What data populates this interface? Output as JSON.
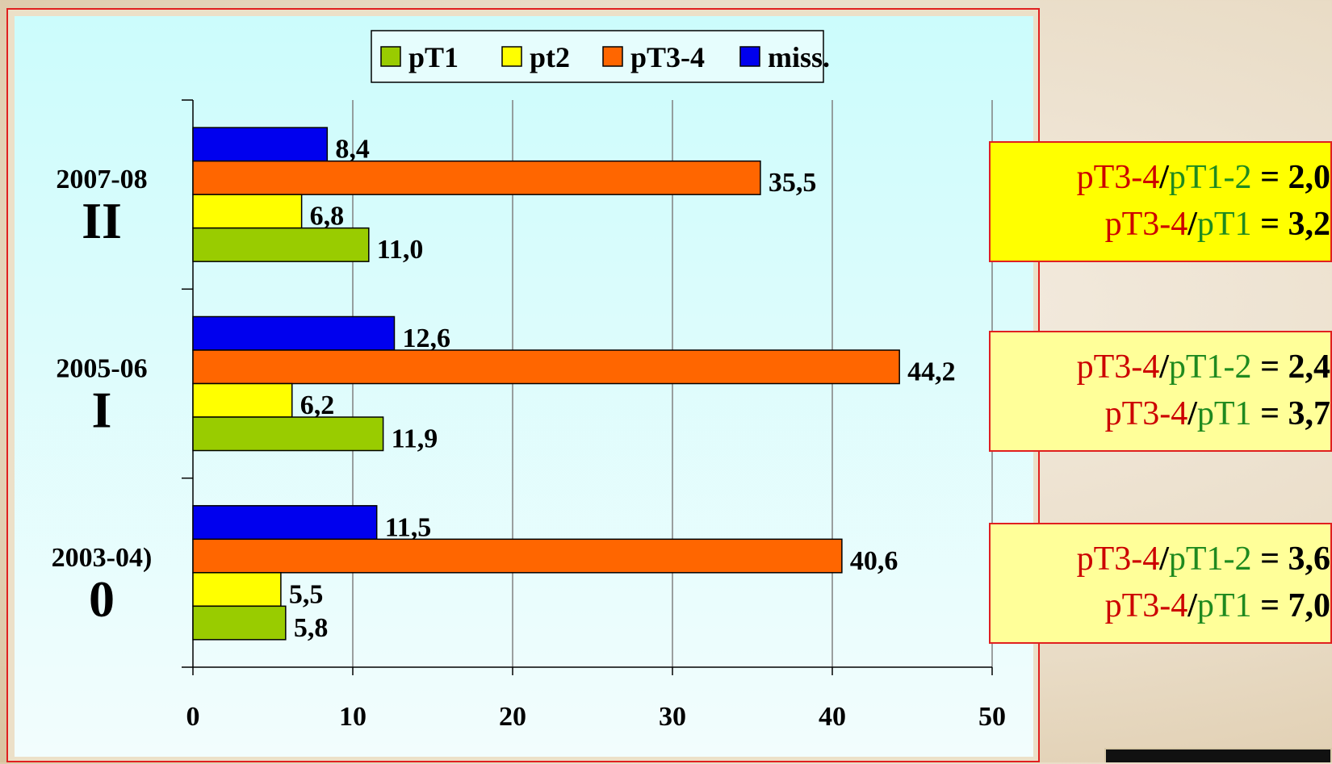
{
  "chart_data": {
    "type": "bar",
    "orientation": "horizontal",
    "groups": [
      {
        "label": "2007-08",
        "roman": "II"
      },
      {
        "label": "2005-06",
        "roman": "I"
      },
      {
        "label": "2003-04)",
        "roman": "0"
      }
    ],
    "series": [
      {
        "name": "pT1",
        "color": "#99cc00",
        "values": [
          11.0,
          11.9,
          5.8
        ],
        "value_labels": [
          "11,0",
          "11,9",
          "5,8"
        ]
      },
      {
        "name": "pt2",
        "color": "#ffff00",
        "values": [
          6.8,
          6.2,
          5.5
        ],
        "value_labels": [
          "6,8",
          "6,2",
          "5,5"
        ]
      },
      {
        "name": "pT3-4",
        "color": "#ff6600",
        "values": [
          35.5,
          44.2,
          40.6
        ],
        "value_labels": [
          "35,5",
          "44,2",
          "40,6"
        ]
      },
      {
        "name": "miss.",
        "color": "#0000ee",
        "values": [
          8.4,
          12.6,
          11.5
        ],
        "value_labels": [
          "8,4",
          "12,6",
          "11,5"
        ]
      }
    ],
    "xlim": [
      0,
      50
    ],
    "xticks": [
      0,
      10,
      20,
      30,
      40,
      50
    ],
    "grid": true,
    "legend_position": "top"
  },
  "ratios": [
    {
      "num": "pT3-4",
      "sep": "/",
      "den": "pT1-2",
      "eq": " = ",
      "val": "2,0",
      "num2": "pT3-4",
      "den2": "pT1",
      "val2": "3,2",
      "bg": "#ffff00"
    },
    {
      "num": "pT3-4",
      "sep": "/",
      "den": "pT1-2",
      "eq": " = ",
      "val": "2,4",
      "num2": "pT3-4",
      "den2": "pT1",
      "val2": "3,7",
      "bg": "#ffff99"
    },
    {
      "num": "pT3-4",
      "sep": "/",
      "den": "pT1-2",
      "eq": " = ",
      "val": "3,6",
      "num2": "pT3-4",
      "den2": "pT1",
      "val2": "7,0",
      "bg": "#ffff99"
    }
  ]
}
